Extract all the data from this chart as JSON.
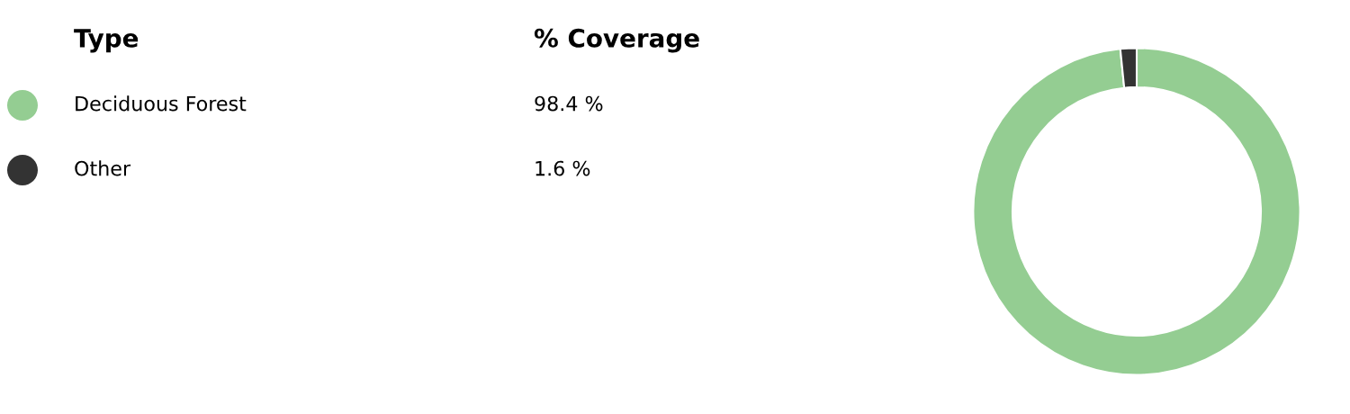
{
  "chart_data": {
    "type": "donut",
    "legend_title": "Type",
    "annotations": [
      "% Coverage"
    ],
    "categories": [
      "Deciduous Forest",
      "Other"
    ],
    "values": [
      98.4,
      1.6
    ],
    "colors": [
      "#94cd92",
      "#333333"
    ],
    "value_labels": [
      "98.4 %",
      "1.6 %"
    ],
    "legend": "left"
  }
}
